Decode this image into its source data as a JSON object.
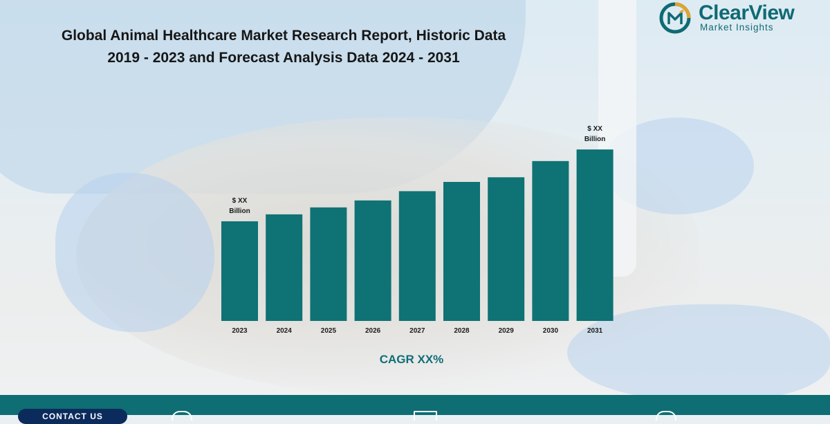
{
  "header": {
    "title_line1": "Global Animal Healthcare Market Research Report, Historic Data",
    "title_line2": "2019 - 2023 and Forecast Analysis Data 2024 - 2031"
  },
  "logo": {
    "name": "ClearView",
    "subtitle": "Market Insights"
  },
  "colors": {
    "bar": "#0f7274",
    "accent": "#0e6e77",
    "footer": "#0e6e74",
    "contact_pill": "#0b2b5c"
  },
  "chart_data": {
    "type": "bar",
    "categories": [
      "2023",
      "2024",
      "2025",
      "2026",
      "2027",
      "2028",
      "2029",
      "2030",
      "2031"
    ],
    "values": [
      43,
      46,
      49,
      52,
      56,
      60,
      62,
      69,
      74
    ],
    "annotations": [
      {
        "category": "2023",
        "text_line1": "$ XX",
        "text_line2": "Billion"
      },
      {
        "category": "2031",
        "text_line1": "$ XX",
        "text_line2": "Billion"
      }
    ],
    "ylim": [
      0,
      100
    ],
    "grid": false,
    "legend": "none",
    "values_note": "relative bar heights only; axis has no printed values"
  },
  "cagr_label": "CAGR XX%",
  "footer": {
    "contact_label": "CONTACT US"
  },
  "icons": [
    "logo-icon",
    "globe-icon",
    "mail-icon",
    "phone-icon"
  ]
}
